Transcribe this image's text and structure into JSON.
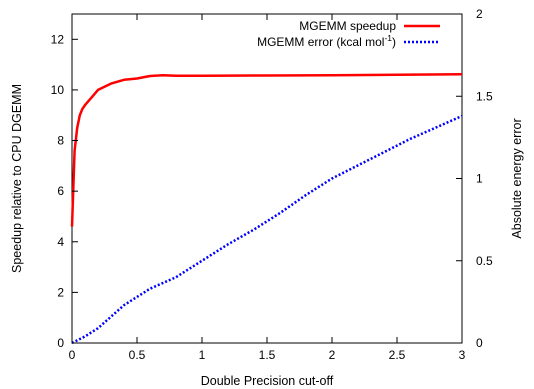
{
  "chart_data": {
    "type": "line",
    "xlabel": "Double Precision cut-off",
    "ylabel": "Speedup relative to CPU DGEMM",
    "y2label": "Absolute energy error",
    "xlim": [
      0,
      3
    ],
    "ylim": [
      0,
      13
    ],
    "y2lim": [
      0,
      2
    ],
    "x_ticks": [
      0,
      0.5,
      1,
      1.5,
      2,
      2.5,
      3
    ],
    "x_tick_labels": [
      "0",
      "0.5",
      "1",
      "1.5",
      "2",
      "2.5",
      "3"
    ],
    "y_ticks": [
      0,
      2,
      4,
      6,
      8,
      10,
      12
    ],
    "y_tick_labels": [
      "0",
      "2",
      "4",
      "6",
      "8",
      "10",
      "12"
    ],
    "y2_ticks": [
      0,
      0.5,
      1,
      1.5,
      2
    ],
    "y2_tick_labels": [
      "0",
      "0.5",
      "1",
      "1.5",
      "2"
    ],
    "grid": false,
    "legend_position": "top-right",
    "series": [
      {
        "name": "MGEMM speedup",
        "axis": "left",
        "color": "#ff0000",
        "style": "solid",
        "x": [
          0.0,
          0.02,
          0.04,
          0.06,
          0.08,
          0.1,
          0.15,
          0.2,
          0.3,
          0.4,
          0.5,
          0.6,
          0.7,
          0.8,
          1.0,
          1.5,
          2.0,
          2.5,
          3.0
        ],
        "y": [
          4.6,
          7.6,
          8.5,
          9.0,
          9.25,
          9.4,
          9.7,
          10.0,
          10.25,
          10.4,
          10.45,
          10.55,
          10.58,
          10.56,
          10.56,
          10.57,
          10.58,
          10.6,
          10.62
        ]
      },
      {
        "name": "MGEMM error (kcal mol",
        "name_sup": "-1",
        "name_suffix": ")",
        "axis": "right",
        "color": "#0000ff",
        "style": "dotted",
        "x": [
          0.0,
          0.1,
          0.2,
          0.3,
          0.4,
          0.5,
          0.6,
          0.8,
          1.0,
          1.2,
          1.4,
          1.6,
          1.8,
          2.0,
          2.2,
          2.4,
          2.6,
          2.8,
          3.0
        ],
        "y": [
          0.0,
          0.04,
          0.09,
          0.16,
          0.23,
          0.28,
          0.33,
          0.4,
          0.5,
          0.6,
          0.69,
          0.79,
          0.9,
          1.0,
          1.08,
          1.16,
          1.24,
          1.31,
          1.38
        ]
      }
    ]
  }
}
